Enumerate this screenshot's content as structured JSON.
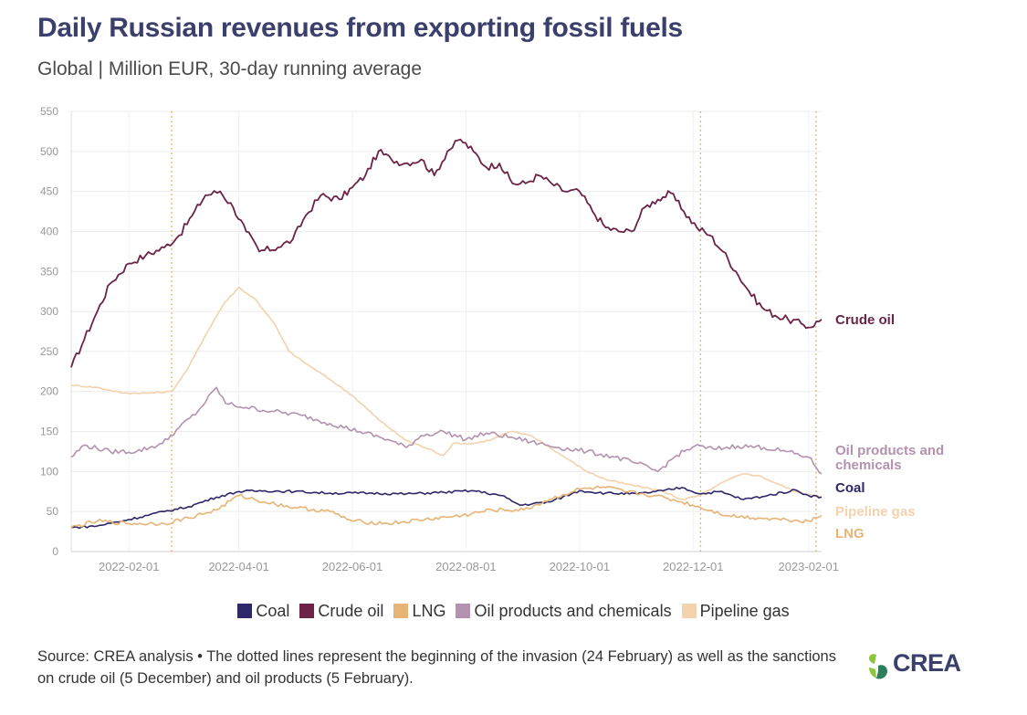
{
  "chart_data": {
    "type": "line",
    "title": "Daily Russian revenues from exporting fossil fuels",
    "subtitle": "Global | Million EUR, 30-day running average",
    "x_start": "2022-01-01",
    "x_end": "2023-02-08",
    "ylim": [
      0,
      550
    ],
    "y_ticks": [
      "0",
      "50",
      "100",
      "150",
      "200",
      "250",
      "300",
      "350",
      "400",
      "450",
      "500",
      "550"
    ],
    "x_ticks": [
      {
        "date": "2022-02-01",
        "label": "2022-02-01"
      },
      {
        "date": "2022-04-01",
        "label": "2022-04-01"
      },
      {
        "date": "2022-06-01",
        "label": "2022-06-01"
      },
      {
        "date": "2022-08-01",
        "label": "2022-08-01"
      },
      {
        "date": "2022-10-01",
        "label": "2022-10-01"
      },
      {
        "date": "2022-12-01",
        "label": "2022-12-01"
      },
      {
        "date": "2023-02-01",
        "label": "2023-02-01"
      }
    ],
    "grid": true,
    "vlines": [
      "2022-02-24",
      "2022-12-05",
      "2023-02-05"
    ],
    "series": [
      {
        "name": "Crude oil",
        "label": "Crude oil",
        "color": "#6b2348",
        "points": [
          [
            "2022-01-01",
            230
          ],
          [
            "2022-01-08",
            265
          ],
          [
            "2022-01-15",
            300
          ],
          [
            "2022-01-22",
            335
          ],
          [
            "2022-02-01",
            360
          ],
          [
            "2022-02-10",
            370
          ],
          [
            "2022-02-20",
            380
          ],
          [
            "2022-02-28",
            395
          ],
          [
            "2022-03-07",
            420
          ],
          [
            "2022-03-14",
            445
          ],
          [
            "2022-03-22",
            450
          ],
          [
            "2022-03-29",
            430
          ],
          [
            "2022-04-05",
            400
          ],
          [
            "2022-04-12",
            375
          ],
          [
            "2022-04-22",
            380
          ],
          [
            "2022-04-30",
            390
          ],
          [
            "2022-05-07",
            420
          ],
          [
            "2022-05-15",
            445
          ],
          [
            "2022-05-25",
            440
          ],
          [
            "2022-06-01",
            455
          ],
          [
            "2022-06-08",
            470
          ],
          [
            "2022-06-15",
            500
          ],
          [
            "2022-06-22",
            490
          ],
          [
            "2022-06-29",
            485
          ],
          [
            "2022-07-08",
            490
          ],
          [
            "2022-07-15",
            470
          ],
          [
            "2022-07-22",
            500
          ],
          [
            "2022-07-29",
            515
          ],
          [
            "2022-08-05",
            500
          ],
          [
            "2022-08-12",
            480
          ],
          [
            "2022-08-19",
            485
          ],
          [
            "2022-08-26",
            460
          ],
          [
            "2022-09-02",
            460
          ],
          [
            "2022-09-09",
            470
          ],
          [
            "2022-09-16",
            460
          ],
          [
            "2022-09-23",
            450
          ],
          [
            "2022-10-01",
            450
          ],
          [
            "2022-10-08",
            425
          ],
          [
            "2022-10-15",
            405
          ],
          [
            "2022-10-22",
            400
          ],
          [
            "2022-10-29",
            400
          ],
          [
            "2022-11-05",
            430
          ],
          [
            "2022-11-12",
            440
          ],
          [
            "2022-11-19",
            448
          ],
          [
            "2022-11-26",
            425
          ],
          [
            "2022-12-03",
            405
          ],
          [
            "2022-12-10",
            395
          ],
          [
            "2022-12-17",
            375
          ],
          [
            "2022-12-24",
            350
          ],
          [
            "2022-12-31",
            325
          ],
          [
            "2023-01-07",
            305
          ],
          [
            "2023-01-14",
            295
          ],
          [
            "2023-01-21",
            290
          ],
          [
            "2023-01-28",
            285
          ],
          [
            "2023-02-01",
            280
          ],
          [
            "2023-02-08",
            290
          ]
        ]
      },
      {
        "name": "Pipeline gas",
        "label": "Pipeline gas",
        "color": "#f3d2ac",
        "points": [
          [
            "2022-01-01",
            208
          ],
          [
            "2022-01-15",
            205
          ],
          [
            "2022-01-29",
            198
          ],
          [
            "2022-02-12",
            198
          ],
          [
            "2022-02-24",
            200
          ],
          [
            "2022-03-05",
            230
          ],
          [
            "2022-03-14",
            270
          ],
          [
            "2022-03-24",
            310
          ],
          [
            "2022-04-01",
            330
          ],
          [
            "2022-04-10",
            315
          ],
          [
            "2022-04-20",
            285
          ],
          [
            "2022-04-28",
            250
          ],
          [
            "2022-05-07",
            235
          ],
          [
            "2022-05-20",
            215
          ],
          [
            "2022-06-01",
            195
          ],
          [
            "2022-06-15",
            165
          ],
          [
            "2022-06-29",
            140
          ],
          [
            "2022-07-10",
            130
          ],
          [
            "2022-07-20",
            120
          ],
          [
            "2022-07-25",
            135
          ],
          [
            "2022-08-05",
            135
          ],
          [
            "2022-08-15",
            140
          ],
          [
            "2022-08-25",
            150
          ],
          [
            "2022-09-05",
            145
          ],
          [
            "2022-09-15",
            130
          ],
          [
            "2022-09-25",
            115
          ],
          [
            "2022-10-05",
            100
          ],
          [
            "2022-10-15",
            90
          ],
          [
            "2022-10-25",
            85
          ],
          [
            "2022-11-05",
            80
          ],
          [
            "2022-11-15",
            75
          ],
          [
            "2022-11-25",
            65
          ],
          [
            "2022-12-05",
            70
          ],
          [
            "2022-12-12",
            80
          ],
          [
            "2022-12-20",
            90
          ],
          [
            "2022-12-28",
            97
          ],
          [
            "2023-01-05",
            95
          ],
          [
            "2023-01-15",
            85
          ],
          [
            "2023-01-25",
            75
          ],
          [
            "2023-02-08",
            68
          ]
        ]
      },
      {
        "name": "Oil products and chemicals",
        "label": "Oil products and chemicals",
        "color": "#b392ad",
        "points": [
          [
            "2022-01-01",
            118
          ],
          [
            "2022-01-08",
            133
          ],
          [
            "2022-01-22",
            125
          ],
          [
            "2022-02-05",
            125
          ],
          [
            "2022-02-19",
            135
          ],
          [
            "2022-02-28",
            155
          ],
          [
            "2022-03-10",
            175
          ],
          [
            "2022-03-20",
            205
          ],
          [
            "2022-03-25",
            185
          ],
          [
            "2022-04-05",
            180
          ],
          [
            "2022-04-20",
            175
          ],
          [
            "2022-05-05",
            170
          ],
          [
            "2022-05-20",
            160
          ],
          [
            "2022-06-05",
            150
          ],
          [
            "2022-06-20",
            140
          ],
          [
            "2022-06-30",
            130
          ],
          [
            "2022-07-08",
            145
          ],
          [
            "2022-07-20",
            150
          ],
          [
            "2022-08-01",
            140
          ],
          [
            "2022-08-12",
            148
          ],
          [
            "2022-08-25",
            143
          ],
          [
            "2022-09-05",
            137
          ],
          [
            "2022-09-20",
            130
          ],
          [
            "2022-10-05",
            125
          ],
          [
            "2022-10-20",
            118
          ],
          [
            "2022-11-01",
            110
          ],
          [
            "2022-11-12",
            100
          ],
          [
            "2022-11-22",
            120
          ],
          [
            "2022-12-02",
            132
          ],
          [
            "2022-12-12",
            128
          ],
          [
            "2022-12-25",
            132
          ],
          [
            "2023-01-08",
            130
          ],
          [
            "2023-01-20",
            125
          ],
          [
            "2023-02-01",
            118
          ],
          [
            "2023-02-08",
            97
          ]
        ]
      },
      {
        "name": "Coal",
        "label": "Coal",
        "color": "#2e2768",
        "points": [
          [
            "2022-01-01",
            30
          ],
          [
            "2022-01-15",
            32
          ],
          [
            "2022-02-01",
            40
          ],
          [
            "2022-02-20",
            50
          ],
          [
            "2022-03-05",
            56
          ],
          [
            "2022-03-20",
            68
          ],
          [
            "2022-04-01",
            75
          ],
          [
            "2022-04-15",
            76
          ],
          [
            "2022-05-01",
            75
          ],
          [
            "2022-05-20",
            73
          ],
          [
            "2022-06-10",
            73
          ],
          [
            "2022-06-30",
            72
          ],
          [
            "2022-07-20",
            74
          ],
          [
            "2022-08-05",
            76
          ],
          [
            "2022-08-20",
            70
          ],
          [
            "2022-08-30",
            58
          ],
          [
            "2022-09-15",
            62
          ],
          [
            "2022-10-01",
            76
          ],
          [
            "2022-10-15",
            73
          ],
          [
            "2022-11-01",
            72
          ],
          [
            "2022-11-15",
            76
          ],
          [
            "2022-11-25",
            80
          ],
          [
            "2022-12-05",
            72
          ],
          [
            "2022-12-15",
            75
          ],
          [
            "2022-12-28",
            65
          ],
          [
            "2023-01-10",
            70
          ],
          [
            "2023-01-25",
            77
          ],
          [
            "2023-02-01",
            70
          ],
          [
            "2023-02-08",
            68
          ]
        ]
      },
      {
        "name": "LNG",
        "label": "LNG",
        "color": "#e8b475",
        "points": [
          [
            "2022-01-01",
            30
          ],
          [
            "2022-01-15",
            38
          ],
          [
            "2022-02-01",
            35
          ],
          [
            "2022-02-20",
            35
          ],
          [
            "2022-03-05",
            42
          ],
          [
            "2022-03-20",
            52
          ],
          [
            "2022-04-01",
            70
          ],
          [
            "2022-04-15",
            62
          ],
          [
            "2022-05-01",
            55
          ],
          [
            "2022-05-20",
            50
          ],
          [
            "2022-06-01",
            38
          ],
          [
            "2022-06-20",
            35
          ],
          [
            "2022-07-10",
            40
          ],
          [
            "2022-07-30",
            45
          ],
          [
            "2022-08-15",
            52
          ],
          [
            "2022-09-01",
            52
          ],
          [
            "2022-09-15",
            65
          ],
          [
            "2022-10-01",
            78
          ],
          [
            "2022-10-15",
            80
          ],
          [
            "2022-10-25",
            75
          ],
          [
            "2022-11-10",
            70
          ],
          [
            "2022-11-25",
            62
          ],
          [
            "2022-12-05",
            55
          ],
          [
            "2022-12-20",
            45
          ],
          [
            "2023-01-05",
            42
          ],
          [
            "2023-01-20",
            40
          ],
          [
            "2023-02-01",
            38
          ],
          [
            "2023-02-08",
            45
          ]
        ]
      }
    ]
  },
  "legend": {
    "items": [
      {
        "label": "Coal",
        "color": "#2e2768"
      },
      {
        "label": "Crude oil",
        "color": "#6b2348"
      },
      {
        "label": "LNG",
        "color": "#e8b475"
      },
      {
        "label": "Oil products and chemicals",
        "color": "#b392ad"
      },
      {
        "label": "Pipeline gas",
        "color": "#f3d2ac"
      }
    ]
  },
  "footnote": "Source: CREA analysis • The dotted lines represent the beginning of the invasion (24 February) as well as the sanctions on crude oil (5 December) and oil products (5 February).",
  "logo": {
    "text": "CREA",
    "icon": "crea-logo-icon",
    "colors": [
      "#8cc63f",
      "#2e7d5b"
    ]
  }
}
